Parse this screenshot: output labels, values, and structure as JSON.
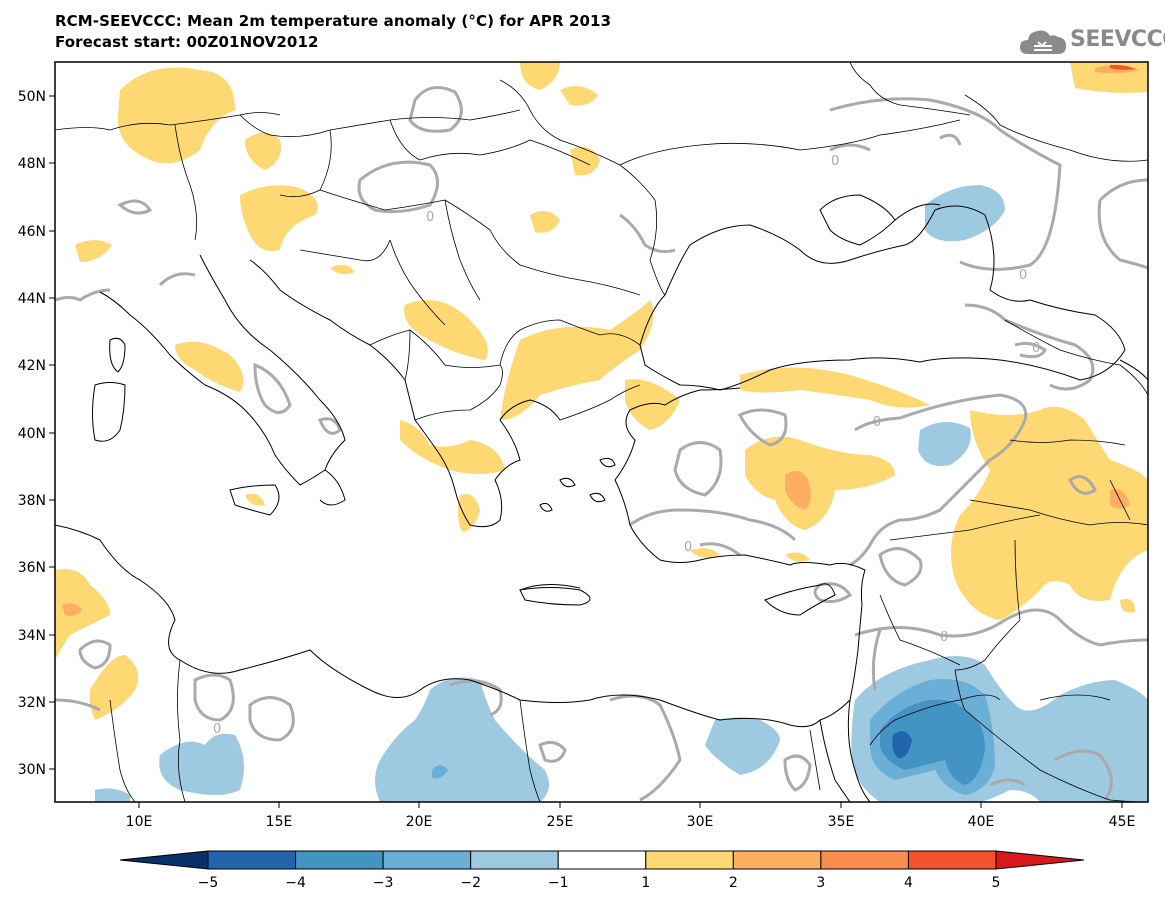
{
  "header": {
    "title_line1": "RCM-SEEVCCC: Mean 2m temperature anomaly (°C) for APR 2013",
    "title_line2": "Forecast start: 00Z01NOV2012",
    "logo_text": "SEEVCCC",
    "logo_icon": "cloud-icon"
  },
  "chart_data": {
    "type": "heatmap",
    "title": "RCM-SEEVCCC: Mean 2m temperature anomaly (°C) for APR 2013",
    "subtitle": "Forecast start: 00Z01NOV2012",
    "x_ticks": [
      "10E",
      "15E",
      "20E",
      "25E",
      "30E",
      "35E",
      "40E",
      "45E"
    ],
    "x_tick_values": [
      10,
      15,
      20,
      25,
      30,
      35,
      40,
      45
    ],
    "y_ticks": [
      "30N",
      "32N",
      "34N",
      "36N",
      "38N",
      "40N",
      "42N",
      "44N",
      "46N",
      "48N",
      "50N"
    ],
    "y_tick_values": [
      30,
      32,
      34,
      36,
      38,
      40,
      42,
      44,
      46,
      48,
      50
    ],
    "xlim": [
      7,
      46
    ],
    "ylim": [
      29,
      51
    ],
    "contour_label": "0",
    "colorbar": {
      "levels": [
        -5,
        -4,
        -3,
        -2,
        -1,
        1,
        2,
        3,
        4,
        5
      ],
      "tick_labels": [
        "−5",
        "−4",
        "−3",
        "−2",
        "−1",
        "1",
        "2",
        "3",
        "4",
        "5"
      ],
      "colors": [
        "#08306b",
        "#2166ac",
        "#4393c3",
        "#6baed6",
        "#9ecae1",
        "#ffffff",
        "#fdd873",
        "#fdae61",
        "#f88d4e",
        "#f4512d",
        "#d7191c"
      ]
    }
  }
}
